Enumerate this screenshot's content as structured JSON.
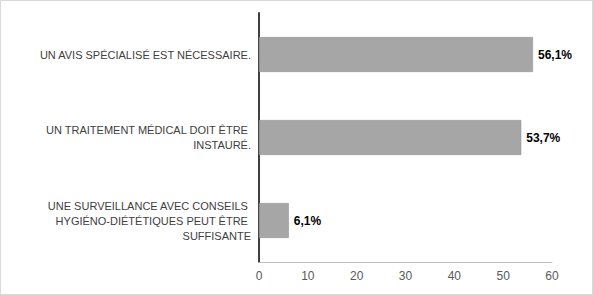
{
  "chart_data": {
    "type": "bar",
    "orientation": "horizontal",
    "categories": [
      "UN AVIS SPÉCIALISÉ EST NÉCESSAIRE.",
      "UN TRAITEMENT MÉDICAL DOIT ÊTRE INSTAURÉ.",
      "UNE SURVEILLANCE AVEC CONSEILS HYGIÉNO-DIÉTÉTIQUES PEUT ÊTRE SUFFISANTE"
    ],
    "values": [
      56.1,
      53.7,
      6.1
    ],
    "value_labels": [
      "56,1%",
      "53,7%",
      "6,1%"
    ],
    "data_labels": true,
    "color": "#a6a6a6",
    "xlim": [
      0,
      60
    ],
    "xticks": [
      0,
      10,
      20,
      30,
      40,
      50,
      60
    ],
    "grid": false
  }
}
